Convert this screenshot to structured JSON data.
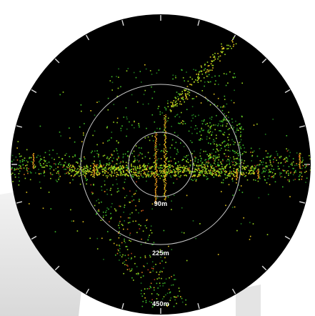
{
  "radar": {
    "range_labels": [
      "90m",
      "225m",
      "450m"
    ],
    "background_color": "#000000",
    "ring_color": "#c8c8c8",
    "point_palette": [
      "#1f7a1f",
      "#3fbf2a",
      "#9bd81e",
      "#e0c21e",
      "#d8781a",
      "#b23a1a"
    ]
  }
}
